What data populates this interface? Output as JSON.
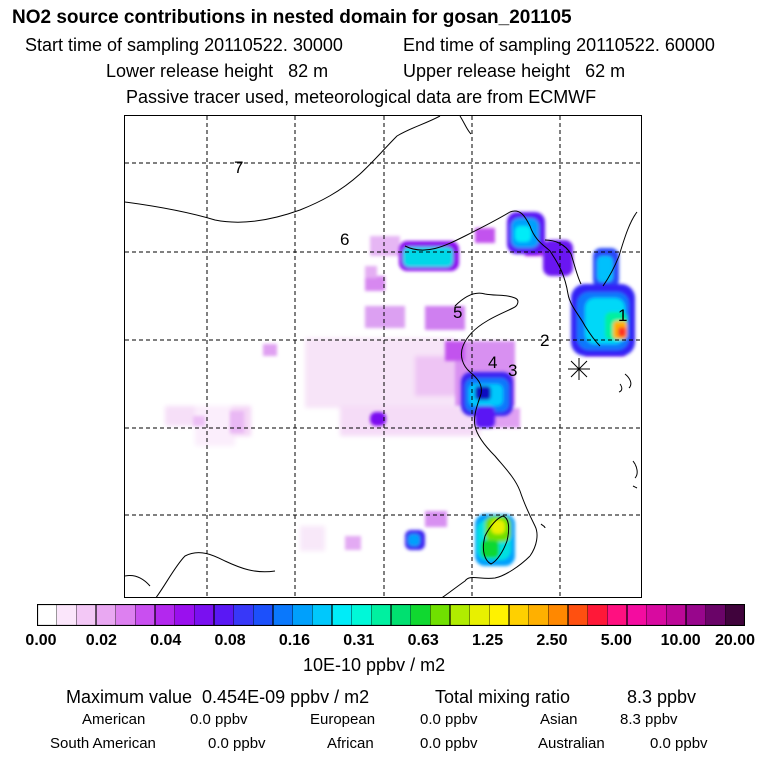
{
  "header": {
    "title": "NO2 source contributions in nested domain for gosan_201105",
    "start_label": "Start time of sampling 20110522. 30000",
    "end_label": "End time of sampling 20110522. 60000",
    "lower_label": "Lower release height   82 m",
    "upper_label": "Upper release height   62 m",
    "info": "Passive tracer used, meteorological data are from ECMWF"
  },
  "map": {
    "region_labels": [
      "1",
      "2",
      "3",
      "4",
      "5",
      "6",
      "7"
    ],
    "receptor_marker": "asterisk-marker"
  },
  "colorbar": {
    "colors": [
      "#ffffff",
      "#fbe6fb",
      "#f3c8f6",
      "#e9a8f2",
      "#dd80f0",
      "#c94ff0",
      "#b328ee",
      "#9a10ee",
      "#7a10f0",
      "#5a18f4",
      "#3838f8",
      "#1c50fb",
      "#0a78fc",
      "#00a0fc",
      "#00c8fc",
      "#00ecf8",
      "#00f8d8",
      "#00f0a0",
      "#00e070",
      "#10d830",
      "#70e000",
      "#b0ec00",
      "#e8f000",
      "#fff200",
      "#ffd000",
      "#ffb000",
      "#ff8800",
      "#ff5010",
      "#ff1838",
      "#ff1080",
      "#f40ca0",
      "#d80aa0",
      "#bc0898",
      "#98068c",
      "#6a0468",
      "#40033c"
    ],
    "tick_labels": [
      "0.00",
      "0.02",
      "0.04",
      "0.08",
      "0.16",
      "0.31",
      "0.63",
      "1.25",
      "2.50",
      "5.00",
      "10.00",
      "20.00"
    ],
    "unit": "10E-10 ppbv / m2"
  },
  "stats": {
    "max_label": "Maximum value  0.454E-09 ppbv / m2",
    "total_label": "Total mixing ratio",
    "total_value": "8.3 ppbv"
  },
  "regions": [
    {
      "name": "American",
      "value": "0.0 ppbv"
    },
    {
      "name": "European",
      "value": "0.0 ppbv"
    },
    {
      "name": "Asian",
      "value": "8.3 ppbv"
    },
    {
      "name": "South American",
      "value": "0.0 ppbv"
    },
    {
      "name": "African",
      "value": "0.0 ppbv"
    },
    {
      "name": "Australian",
      "value": "0.0 ppbv"
    }
  ]
}
